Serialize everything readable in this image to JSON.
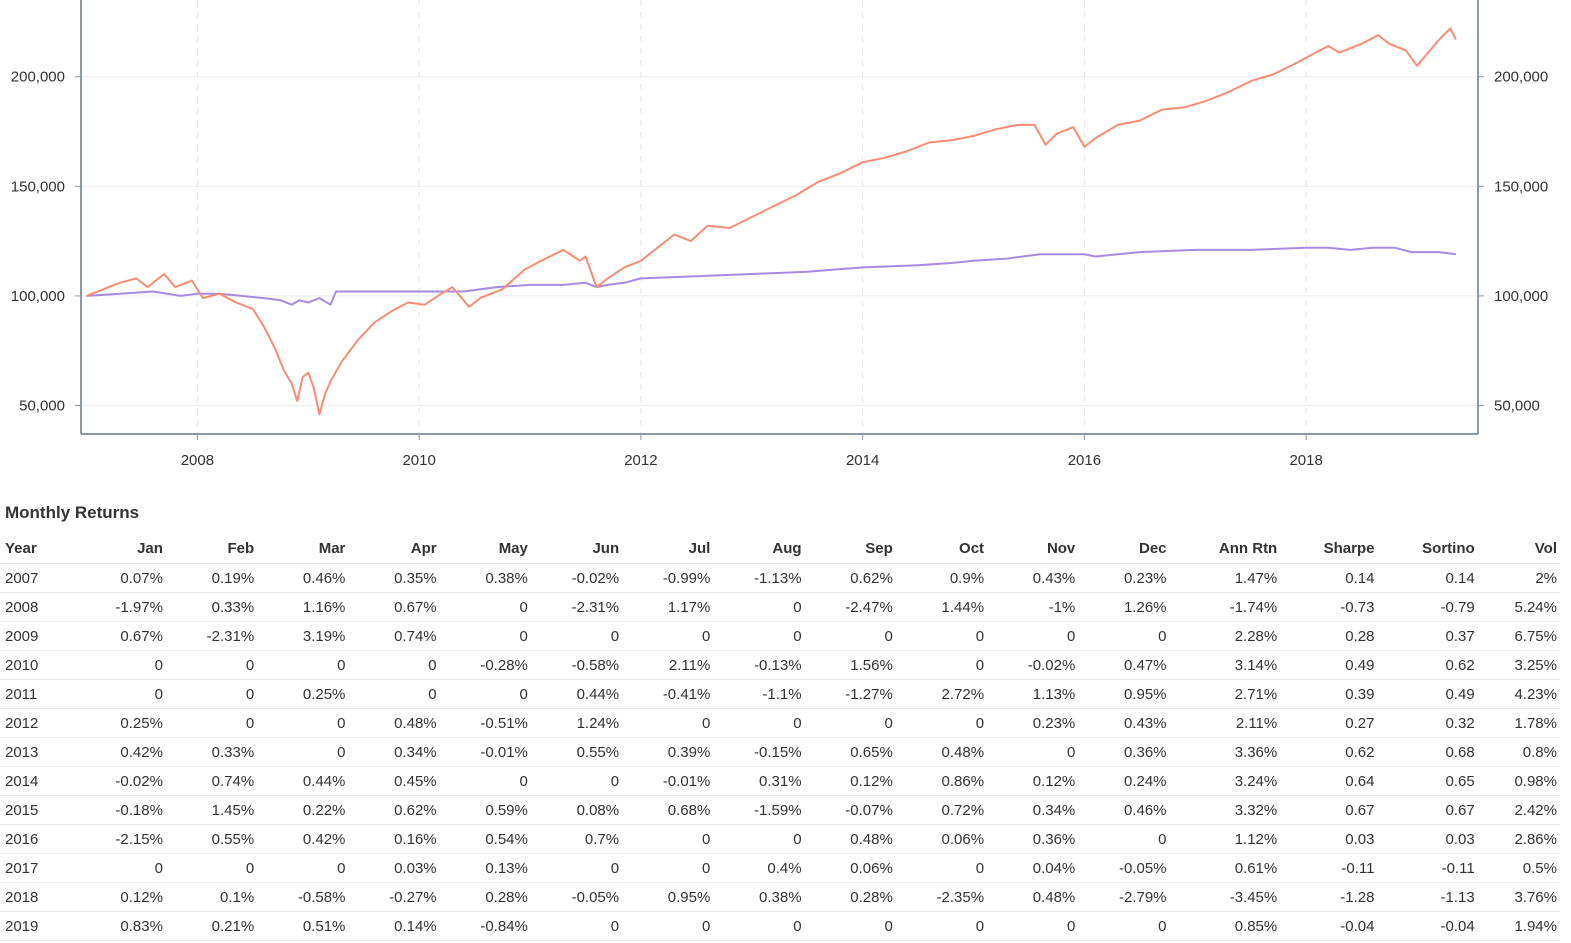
{
  "chart_data": {
    "type": "line",
    "title": "",
    "xlabel": "",
    "ylabel": "",
    "xlim": [
      2006.95,
      2019.55
    ],
    "ylim": [
      37000,
      235000
    ],
    "x_ticks": [
      "2008",
      "2010",
      "2012",
      "2014",
      "2016",
      "2018"
    ],
    "x_tick_values": [
      2008,
      2010,
      2012,
      2014,
      2016,
      2018
    ],
    "y_ticks": [
      "50,000",
      "100,000",
      "150,000",
      "200,000"
    ],
    "y_tick_values": [
      50000,
      100000,
      150000,
      200000
    ],
    "grid": true,
    "series": [
      {
        "color": "#fa8c74",
        "x": [
          2007.0,
          2007.15,
          2007.3,
          2007.45,
          2007.55,
          2007.7,
          2007.8,
          2007.95,
          2008.05,
          2008.2,
          2008.35,
          2008.5,
          2008.6,
          2008.7,
          2008.78,
          2008.85,
          2008.9,
          2008.95,
          2009.0,
          2009.05,
          2009.1,
          2009.15,
          2009.2,
          2009.3,
          2009.45,
          2009.6,
          2009.75,
          2009.9,
          2010.05,
          2010.2,
          2010.3,
          2010.45,
          2010.55,
          2010.75,
          2010.95,
          2011.1,
          2011.3,
          2011.45,
          2011.5,
          2011.6,
          2011.7,
          2011.85,
          2012.0,
          2012.15,
          2012.3,
          2012.45,
          2012.6,
          2012.8,
          2013.0,
          2013.2,
          2013.4,
          2013.6,
          2013.8,
          2014.0,
          2014.2,
          2014.4,
          2014.6,
          2014.8,
          2015.0,
          2015.2,
          2015.4,
          2015.55,
          2015.65,
          2015.75,
          2015.9,
          2016.0,
          2016.1,
          2016.3,
          2016.5,
          2016.7,
          2016.9,
          2017.1,
          2017.3,
          2017.5,
          2017.7,
          2017.9,
          2018.05,
          2018.2,
          2018.3,
          2018.5,
          2018.65,
          2018.75,
          2018.9,
          2019.0,
          2019.1,
          2019.2,
          2019.3,
          2019.35
        ],
        "values": [
          100000,
          103000,
          106000,
          108000,
          104000,
          110000,
          104000,
          107000,
          99000,
          101000,
          97000,
          94000,
          86000,
          76000,
          66000,
          60000,
          52000,
          63000,
          65000,
          58000,
          46000,
          55000,
          61000,
          70000,
          80000,
          88000,
          93000,
          97000,
          96000,
          101000,
          104000,
          95000,
          99000,
          103000,
          112000,
          116000,
          121000,
          116000,
          118000,
          104000,
          108000,
          113000,
          116000,
          122000,
          128000,
          125000,
          132000,
          131000,
          136000,
          141000,
          146000,
          152000,
          156000,
          161000,
          163000,
          166000,
          170000,
          171000,
          173000,
          176000,
          178000,
          178000,
          169000,
          174000,
          177000,
          168000,
          172000,
          178000,
          180000,
          185000,
          186000,
          189000,
          193000,
          198000,
          201000,
          206000,
          210000,
          214000,
          211000,
          215000,
          219000,
          215000,
          212000,
          205000,
          211000,
          217000,
          222000,
          217000
        ]
      },
      {
        "color": "#a78be0",
        "x": [
          2007.0,
          2007.3,
          2007.6,
          2007.85,
          2008.0,
          2008.2,
          2008.4,
          2008.6,
          2008.75,
          2008.85,
          2008.92,
          2009.0,
          2009.1,
          2009.2,
          2009.25,
          2009.6,
          2010.0,
          2010.4,
          2010.7,
          2011.0,
          2011.3,
          2011.5,
          2011.6,
          2011.7,
          2011.85,
          2012.0,
          2012.5,
          2013.0,
          2013.5,
          2014.0,
          2014.5,
          2014.8,
          2015.0,
          2015.3,
          2015.6,
          2015.8,
          2016.0,
          2016.1,
          2016.5,
          2017.0,
          2017.5,
          2018.0,
          2018.2,
          2018.4,
          2018.6,
          2018.8,
          2018.95,
          2019.05,
          2019.2,
          2019.35
        ],
        "values": [
          100000,
          101000,
          102000,
          100000,
          101000,
          101000,
          100000,
          99000,
          98000,
          96000,
          98000,
          97000,
          99000,
          96000,
          102000,
          102000,
          102000,
          102000,
          104000,
          105000,
          105000,
          106000,
          104000,
          105000,
          106000,
          108000,
          109000,
          110000,
          111000,
          113000,
          114000,
          115000,
          116000,
          117000,
          119000,
          119000,
          119000,
          118000,
          120000,
          121000,
          121000,
          122000,
          122000,
          121000,
          122000,
          122000,
          120000,
          120000,
          120000,
          119000
        ]
      }
    ]
  },
  "table": {
    "title": "Monthly Returns",
    "columns": [
      "Year",
      "Jan",
      "Feb",
      "Mar",
      "Apr",
      "May",
      "Jun",
      "Jul",
      "Aug",
      "Sep",
      "Oct",
      "Nov",
      "Dec",
      "Ann Rtn",
      "Sharpe",
      "Sortino",
      "Vol"
    ],
    "rows": [
      [
        "2007",
        "0.07%",
        "0.19%",
        "0.46%",
        "0.35%",
        "0.38%",
        "-0.02%",
        "-0.99%",
        "-1.13%",
        "0.62%",
        "0.9%",
        "0.43%",
        "0.23%",
        "1.47%",
        "0.14",
        "0.14",
        "2%"
      ],
      [
        "2008",
        "-1.97%",
        "0.33%",
        "1.16%",
        "0.67%",
        "0",
        "-2.31%",
        "1.17%",
        "0",
        "-2.47%",
        "1.44%",
        "-1%",
        "1.26%",
        "-1.74%",
        "-0.73",
        "-0.79",
        "5.24%"
      ],
      [
        "2009",
        "0.67%",
        "-2.31%",
        "3.19%",
        "0.74%",
        "0",
        "0",
        "0",
        "0",
        "0",
        "0",
        "0",
        "0",
        "2.28%",
        "0.28",
        "0.37",
        "6.75%"
      ],
      [
        "2010",
        "0",
        "0",
        "0",
        "0",
        "-0.28%",
        "-0.58%",
        "2.11%",
        "-0.13%",
        "1.56%",
        "0",
        "-0.02%",
        "0.47%",
        "3.14%",
        "0.49",
        "0.62",
        "3.25%"
      ],
      [
        "2011",
        "0",
        "0",
        "0.25%",
        "0",
        "0",
        "0.44%",
        "-0.41%",
        "-1.1%",
        "-1.27%",
        "2.72%",
        "1.13%",
        "0.95%",
        "2.71%",
        "0.39",
        "0.49",
        "4.23%"
      ],
      [
        "2012",
        "0.25%",
        "0",
        "0",
        "0.48%",
        "-0.51%",
        "1.24%",
        "0",
        "0",
        "0",
        "0",
        "0.23%",
        "0.43%",
        "2.11%",
        "0.27",
        "0.32",
        "1.78%"
      ],
      [
        "2013",
        "0.42%",
        "0.33%",
        "0",
        "0.34%",
        "-0.01%",
        "0.55%",
        "0.39%",
        "-0.15%",
        "0.65%",
        "0.48%",
        "0",
        "0.36%",
        "3.36%",
        "0.62",
        "0.68",
        "0.8%"
      ],
      [
        "2014",
        "-0.02%",
        "0.74%",
        "0.44%",
        "0.45%",
        "0",
        "0",
        "-0.01%",
        "0.31%",
        "0.12%",
        "0.86%",
        "0.12%",
        "0.24%",
        "3.24%",
        "0.64",
        "0.65",
        "0.98%"
      ],
      [
        "2015",
        "-0.18%",
        "1.45%",
        "0.22%",
        "0.62%",
        "0.59%",
        "0.08%",
        "0.68%",
        "-1.59%",
        "-0.07%",
        "0.72%",
        "0.34%",
        "0.46%",
        "3.32%",
        "0.67",
        "0.67",
        "2.42%"
      ],
      [
        "2016",
        "-2.15%",
        "0.55%",
        "0.42%",
        "0.16%",
        "0.54%",
        "0.7%",
        "0",
        "0",
        "0.48%",
        "0.06%",
        "0.36%",
        "0",
        "1.12%",
        "0.03",
        "0.03",
        "2.86%"
      ],
      [
        "2017",
        "0",
        "0",
        "0",
        "0.03%",
        "0.13%",
        "0",
        "0",
        "0.4%",
        "0.06%",
        "0",
        "0.04%",
        "-0.05%",
        "0.61%",
        "-0.11",
        "-0.11",
        "0.5%"
      ],
      [
        "2018",
        "0.12%",
        "0.1%",
        "-0.58%",
        "-0.27%",
        "0.28%",
        "-0.05%",
        "0.95%",
        "0.38%",
        "0.28%",
        "-2.35%",
        "0.48%",
        "-2.79%",
        "-3.45%",
        "-1.28",
        "-1.13",
        "3.76%"
      ],
      [
        "2019",
        "0.83%",
        "0.21%",
        "0.51%",
        "0.14%",
        "-0.84%",
        "0",
        "0",
        "0",
        "0",
        "0",
        "0",
        "0",
        "0.85%",
        "-0.04",
        "-0.04",
        "1.94%"
      ]
    ]
  }
}
